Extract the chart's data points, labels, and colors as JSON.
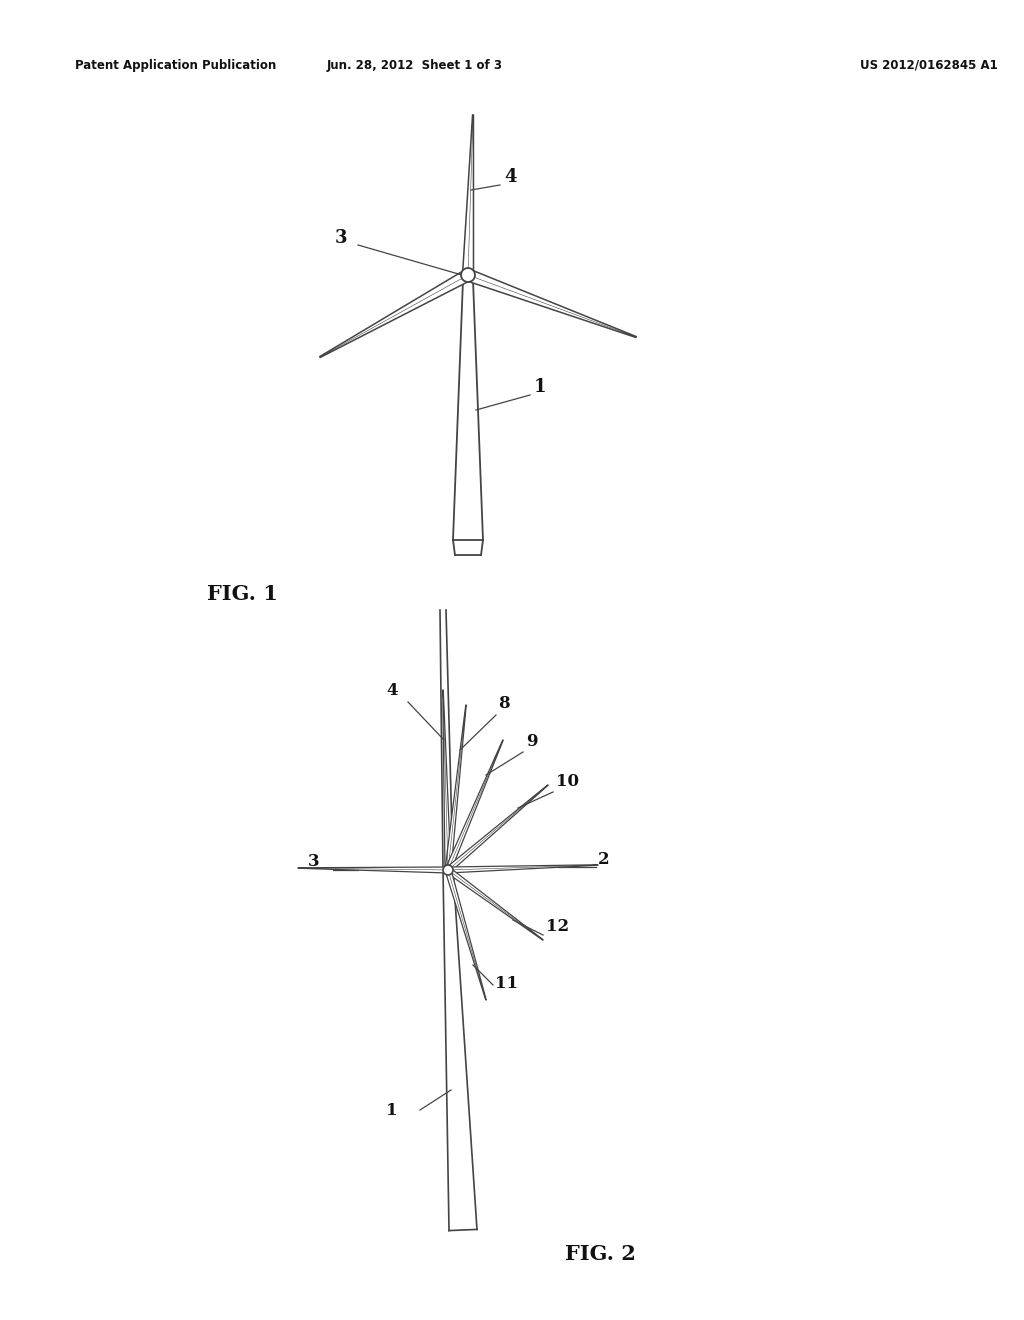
{
  "background_color": "#ffffff",
  "fig_width": 10.24,
  "fig_height": 13.2,
  "header_left": "Patent Application Publication",
  "header_center": "Jun. 28, 2012  Sheet 1 of 3",
  "header_right": "US 2012/0162845 A1",
  "fig1_label": "FIG. 1",
  "fig2_label": "FIG. 2",
  "line_color": "#444444",
  "text_color": "#111111"
}
